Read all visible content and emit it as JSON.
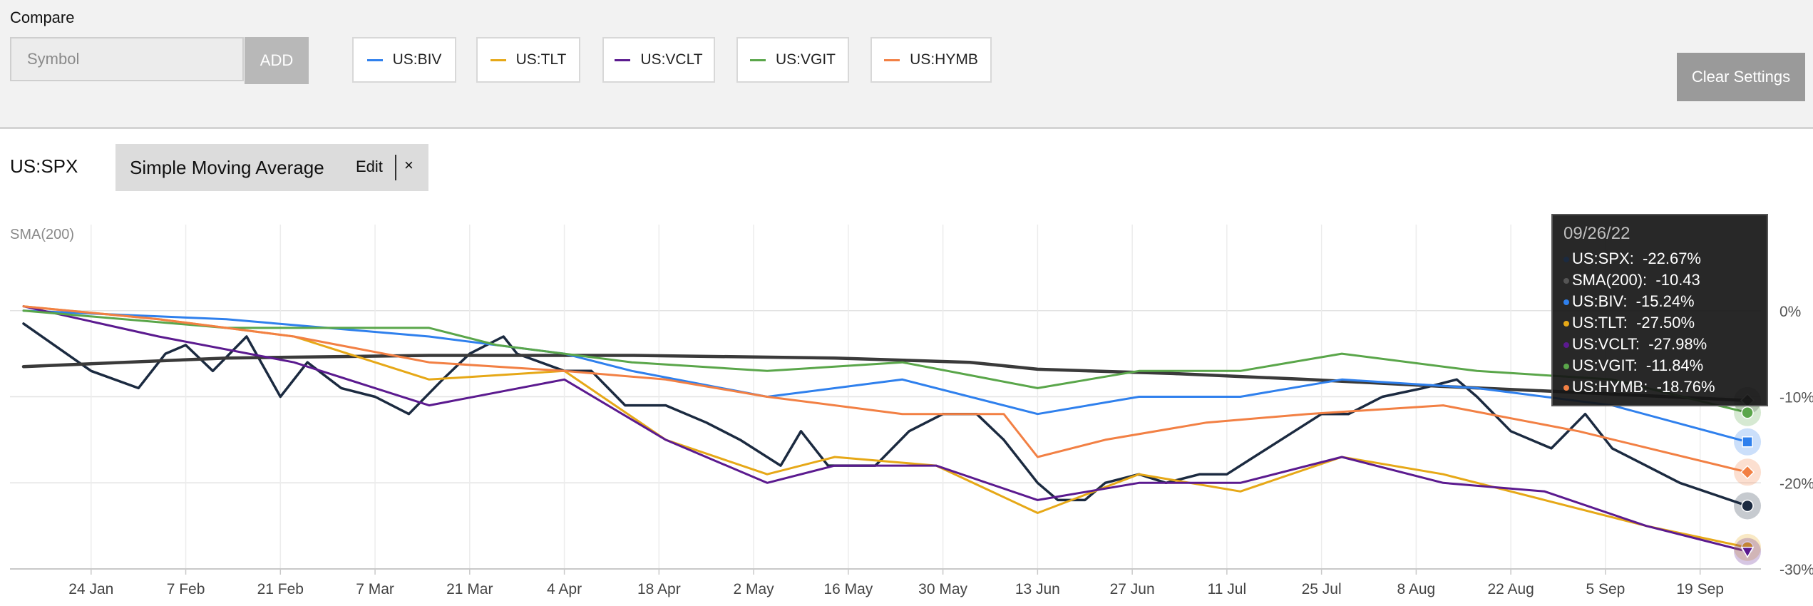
{
  "compare": {
    "label": "Compare",
    "symbol_placeholder": "Symbol",
    "add_label": "ADD",
    "clear_label": "Clear Settings",
    "chips": [
      {
        "label": "US:BIV",
        "color": "#2f80ed"
      },
      {
        "label": "US:TLT",
        "color": "#e6a817"
      },
      {
        "label": "US:VCLT",
        "color": "#5b1a8f"
      },
      {
        "label": "US:VGIT",
        "color": "#5aa64a"
      },
      {
        "label": "US:HYMB",
        "color": "#f28044"
      }
    ]
  },
  "main": {
    "symbol": "US:SPX",
    "indicator": {
      "name": "Simple Moving Average",
      "edit_label": "Edit",
      "close_label": "×"
    }
  },
  "tooltip": {
    "date": "09/26/22",
    "rows": [
      {
        "label": "US:SPX:",
        "value": "-22.67%",
        "color": "#1b2a40"
      },
      {
        "label": "SMA(200):",
        "value": "-10.43",
        "color": "#555555"
      },
      {
        "label": "US:BIV:",
        "value": "-15.24%",
        "color": "#2f80ed"
      },
      {
        "label": "US:TLT:",
        "value": "-27.50%",
        "color": "#e6a817"
      },
      {
        "label": "US:VCLT:",
        "value": "-27.98%",
        "color": "#5b1a8f"
      },
      {
        "label": "US:VGIT:",
        "value": "-11.84%",
        "color": "#5aa64a"
      },
      {
        "label": "US:HYMB:",
        "value": "-18.76%",
        "color": "#f28044"
      }
    ]
  },
  "chart_data": {
    "type": "line",
    "sma_label": "SMA(200)",
    "x_ticks": [
      "24 Jan",
      "7 Feb",
      "21 Feb",
      "7 Mar",
      "21 Mar",
      "4 Apr",
      "18 Apr",
      "2 May",
      "16 May",
      "30 May",
      "13 Jun",
      "27 Jun",
      "11 Jul",
      "25 Jul",
      "8 Aug",
      "22 Aug",
      "5 Sep",
      "19 Sep"
    ],
    "y_ticks": [
      "0%",
      "-10%",
      "-20%",
      "-30%"
    ],
    "y_tick_values": [
      0,
      -10,
      -20,
      -30
    ],
    "ylim": [
      -30,
      10
    ],
    "grid": true,
    "x_start": "2022-01-14",
    "x_end": "2022-09-26",
    "series": [
      {
        "name": "US:SPX",
        "color": "#1b2a40",
        "values": [
          [
            0,
            -1.5
          ],
          [
            10,
            -7
          ],
          [
            17,
            -9
          ],
          [
            21,
            -5
          ],
          [
            24,
            -4
          ],
          [
            28,
            -7
          ],
          [
            33,
            -3
          ],
          [
            38,
            -10
          ],
          [
            42,
            -6
          ],
          [
            47,
            -9
          ],
          [
            52,
            -10
          ],
          [
            57,
            -12
          ],
          [
            62,
            -8
          ],
          [
            66,
            -5
          ],
          [
            71,
            -3
          ],
          [
            73,
            -5
          ],
          [
            80,
            -7
          ],
          [
            84,
            -7
          ],
          [
            89,
            -11
          ],
          [
            95,
            -11
          ],
          [
            101,
            -13
          ],
          [
            106,
            -15
          ],
          [
            112,
            -18
          ],
          [
            115,
            -14
          ],
          [
            119,
            -18
          ],
          [
            126,
            -18
          ],
          [
            131,
            -14
          ],
          [
            136,
            -12
          ],
          [
            141,
            -12
          ],
          [
            145,
            -15
          ],
          [
            150,
            -20
          ],
          [
            153,
            -22
          ],
          [
            157,
            -22
          ],
          [
            160,
            -20
          ],
          [
            165,
            -19
          ],
          [
            169,
            -20
          ],
          [
            174,
            -19
          ],
          [
            178,
            -19
          ],
          [
            182,
            -17
          ],
          [
            188,
            -14
          ],
          [
            192,
            -12
          ],
          [
            196,
            -12
          ],
          [
            201,
            -10
          ],
          [
            207,
            -9
          ],
          [
            212,
            -8
          ],
          [
            215,
            -10
          ],
          [
            220,
            -14
          ],
          [
            226,
            -16
          ],
          [
            231,
            -12
          ],
          [
            235,
            -16
          ],
          [
            240,
            -18
          ],
          [
            245,
            -20
          ],
          [
            255,
            -22.67
          ]
        ]
      },
      {
        "name": "SMA(200)",
        "color": "#3a3a3a",
        "values": [
          [
            0,
            -6.5
          ],
          [
            30,
            -5.5
          ],
          [
            60,
            -5.2
          ],
          [
            90,
            -5.2
          ],
          [
            120,
            -5.5
          ],
          [
            140,
            -6
          ],
          [
            150,
            -6.8
          ],
          [
            170,
            -7.3
          ],
          [
            190,
            -8
          ],
          [
            210,
            -8.8
          ],
          [
            230,
            -9.5
          ],
          [
            255,
            -10.43
          ]
        ]
      },
      {
        "name": "US:BIV",
        "color": "#2f80ed",
        "values": [
          [
            0,
            0
          ],
          [
            30,
            -1
          ],
          [
            60,
            -3
          ],
          [
            80,
            -5
          ],
          [
            90,
            -7
          ],
          [
            110,
            -10
          ],
          [
            130,
            -8
          ],
          [
            150,
            -12
          ],
          [
            165,
            -10
          ],
          [
            180,
            -10
          ],
          [
            195,
            -8
          ],
          [
            215,
            -9
          ],
          [
            235,
            -11
          ],
          [
            255,
            -15.24
          ]
        ]
      },
      {
        "name": "US:TLT",
        "color": "#e6a817",
        "values": [
          [
            0,
            0.5
          ],
          [
            20,
            -1
          ],
          [
            40,
            -3
          ],
          [
            60,
            -8
          ],
          [
            80,
            -7
          ],
          [
            95,
            -15
          ],
          [
            110,
            -19
          ],
          [
            120,
            -17
          ],
          [
            135,
            -18
          ],
          [
            150,
            -23.5
          ],
          [
            165,
            -19
          ],
          [
            180,
            -21
          ],
          [
            195,
            -17
          ],
          [
            210,
            -19
          ],
          [
            225,
            -22
          ],
          [
            240,
            -25
          ],
          [
            255,
            -27.5
          ]
        ]
      },
      {
        "name": "US:VCLT",
        "color": "#5b1a8f",
        "values": [
          [
            0,
            0.5
          ],
          [
            20,
            -3
          ],
          [
            40,
            -6
          ],
          [
            60,
            -11
          ],
          [
            80,
            -8
          ],
          [
            95,
            -15
          ],
          [
            110,
            -20
          ],
          [
            120,
            -18
          ],
          [
            135,
            -18
          ],
          [
            150,
            -22
          ],
          [
            165,
            -20
          ],
          [
            180,
            -20
          ],
          [
            195,
            -17
          ],
          [
            210,
            -20
          ],
          [
            225,
            -21
          ],
          [
            240,
            -25
          ],
          [
            255,
            -27.98
          ]
        ]
      },
      {
        "name": "US:VGIT",
        "color": "#5aa64a",
        "values": [
          [
            0,
            0
          ],
          [
            30,
            -2
          ],
          [
            60,
            -2
          ],
          [
            70,
            -4
          ],
          [
            90,
            -6
          ],
          [
            110,
            -7
          ],
          [
            130,
            -6
          ],
          [
            150,
            -9
          ],
          [
            165,
            -7
          ],
          [
            180,
            -7
          ],
          [
            195,
            -5
          ],
          [
            215,
            -7
          ],
          [
            235,
            -8
          ],
          [
            255,
            -11.84
          ]
        ]
      },
      {
        "name": "US:HYMB",
        "color": "#f28044",
        "values": [
          [
            0,
            0.5
          ],
          [
            20,
            -1
          ],
          [
            40,
            -3
          ],
          [
            60,
            -6
          ],
          [
            80,
            -7
          ],
          [
            95,
            -8
          ],
          [
            110,
            -10
          ],
          [
            130,
            -12
          ],
          [
            145,
            -12
          ],
          [
            150,
            -17
          ],
          [
            160,
            -15
          ],
          [
            175,
            -13
          ],
          [
            190,
            -12
          ],
          [
            210,
            -11
          ],
          [
            230,
            -14
          ],
          [
            255,
            -18.76
          ]
        ]
      }
    ]
  }
}
